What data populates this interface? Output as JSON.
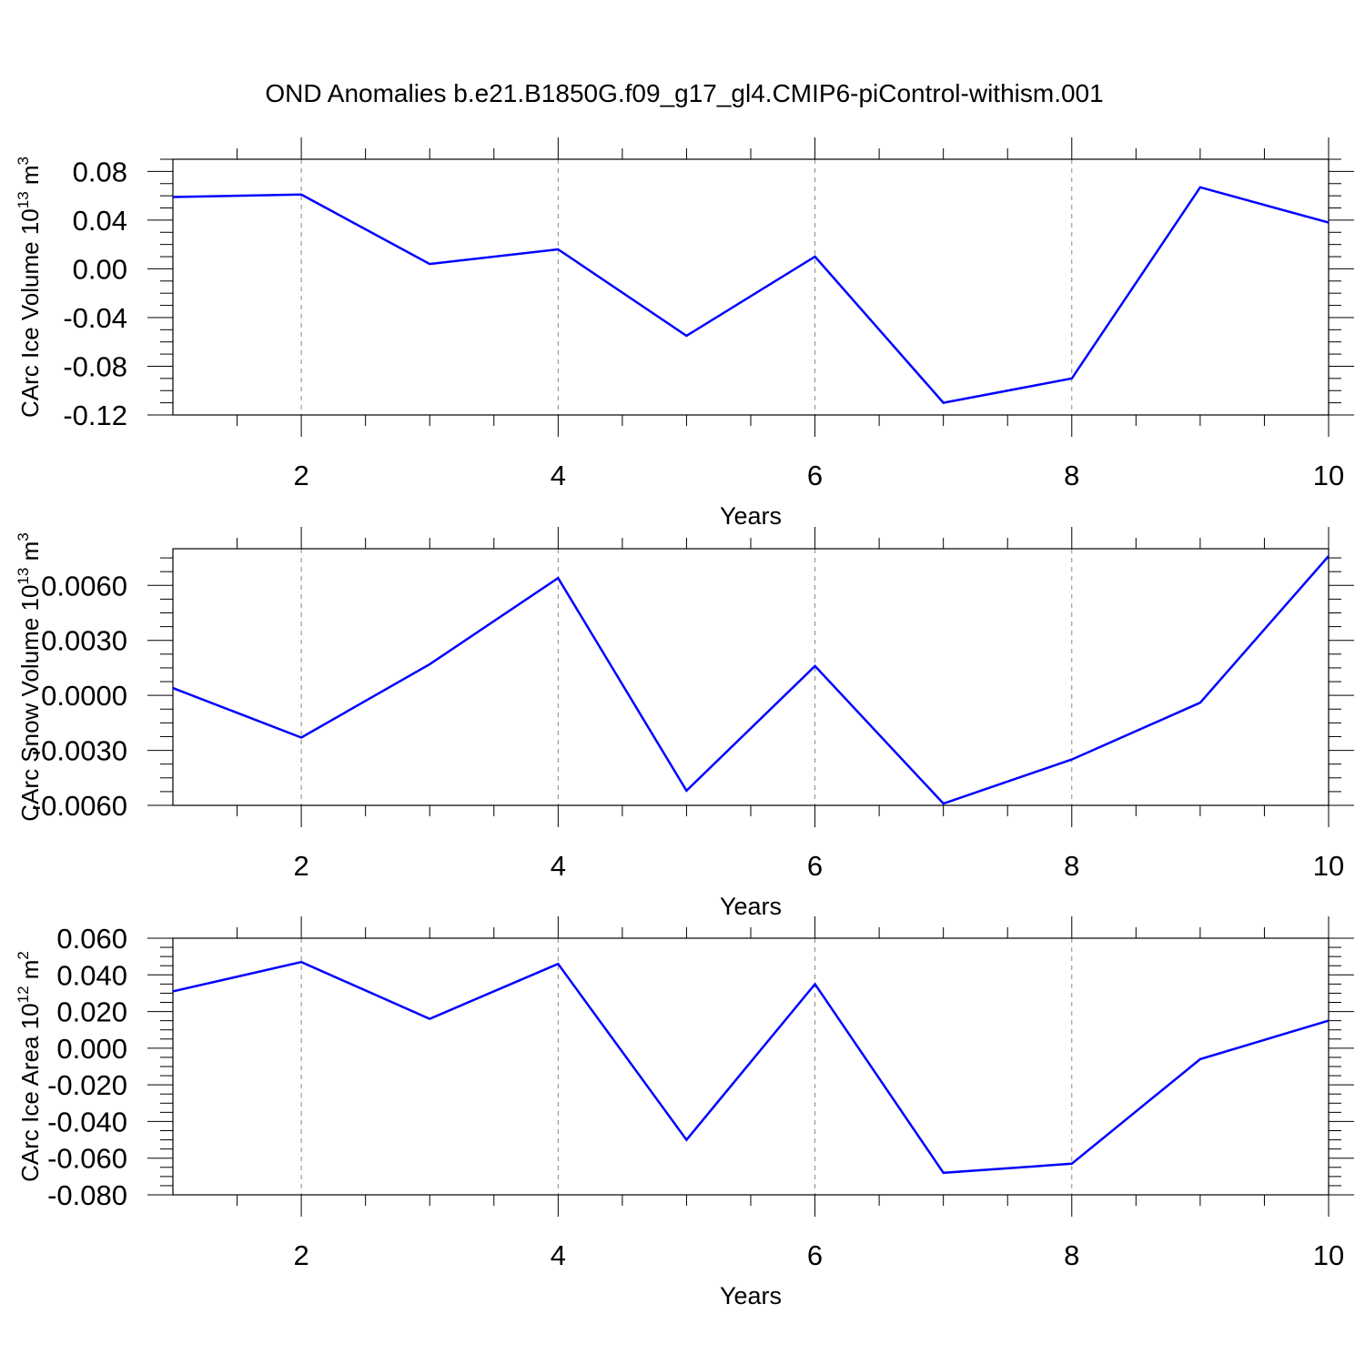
{
  "title": "OND Anomalies b.e21.B1850G.f09_g17_gl4.CMIP6-piControl-withism.001",
  "line_color": "#0000ff",
  "chart_data": [
    {
      "type": "line",
      "ylabel_main": "CArc Ice Volume 10",
      "ylabel_exp": "13",
      "ylabel_unit": " m",
      "ylabel_unit_exp": "3",
      "xlabel": "Years",
      "xlim": [
        1,
        10
      ],
      "ylim": [
        -0.12,
        0.09
      ],
      "xticks": [
        2,
        4,
        6,
        8,
        10
      ],
      "xtick_labels": [
        "2",
        "4",
        "6",
        "8",
        "10"
      ],
      "yticks": [
        -0.12,
        -0.08,
        -0.04,
        0.0,
        0.04,
        0.08
      ],
      "ytick_labels": [
        "-0.12",
        "-0.08",
        "-0.04",
        "0.00",
        "0.04",
        "0.08"
      ],
      "grid": "vertical-dashed",
      "series": [
        {
          "x": [
            1,
            2,
            3,
            4,
            5,
            6,
            7,
            8,
            9,
            10
          ],
          "values": [
            0.059,
            0.061,
            0.004,
            0.016,
            -0.055,
            0.01,
            -0.11,
            -0.09,
            0.067,
            0.038
          ]
        }
      ]
    },
    {
      "type": "line",
      "ylabel_main": "CArc Snow Volume 10",
      "ylabel_exp": "13",
      "ylabel_unit": " m",
      "ylabel_unit_exp": "3",
      "xlabel": "Years",
      "xlim": [
        1,
        10
      ],
      "ylim": [
        -0.006,
        0.008
      ],
      "xticks": [
        2,
        4,
        6,
        8,
        10
      ],
      "xtick_labels": [
        "2",
        "4",
        "6",
        "8",
        "10"
      ],
      "yticks": [
        -0.006,
        -0.003,
        0.0,
        0.003,
        0.006
      ],
      "ytick_labels": [
        "-0.0060",
        "-0.0030",
        "0.0000",
        "0.0030",
        "0.0060"
      ],
      "grid": "vertical-dashed",
      "series": [
        {
          "x": [
            1,
            2,
            3,
            4,
            5,
            6,
            7,
            8,
            9,
            10
          ],
          "values": [
            0.0004,
            -0.0023,
            0.0017,
            0.0064,
            -0.0052,
            0.0016,
            -0.0059,
            -0.0035,
            -0.0004,
            0.0076
          ]
        }
      ]
    },
    {
      "type": "line",
      "ylabel_main": "CArc Ice Area 10",
      "ylabel_exp": "12",
      "ylabel_unit": " m",
      "ylabel_unit_exp": "2",
      "xlabel": "Years",
      "xlim": [
        1,
        10
      ],
      "ylim": [
        -0.08,
        0.06
      ],
      "xticks": [
        2,
        4,
        6,
        8,
        10
      ],
      "xtick_labels": [
        "2",
        "4",
        "6",
        "8",
        "10"
      ],
      "yticks": [
        -0.08,
        -0.06,
        -0.04,
        -0.02,
        0.0,
        0.02,
        0.04,
        0.06
      ],
      "ytick_labels": [
        "-0.080",
        "-0.060",
        "-0.040",
        "-0.020",
        "0.000",
        "0.020",
        "0.040",
        "0.060"
      ],
      "grid": "vertical-dashed",
      "series": [
        {
          "x": [
            1,
            2,
            3,
            4,
            5,
            6,
            7,
            8,
            9,
            10
          ],
          "values": [
            0.031,
            0.047,
            0.016,
            0.046,
            -0.05,
            0.035,
            -0.068,
            -0.063,
            -0.006,
            0.015
          ]
        }
      ]
    }
  ]
}
